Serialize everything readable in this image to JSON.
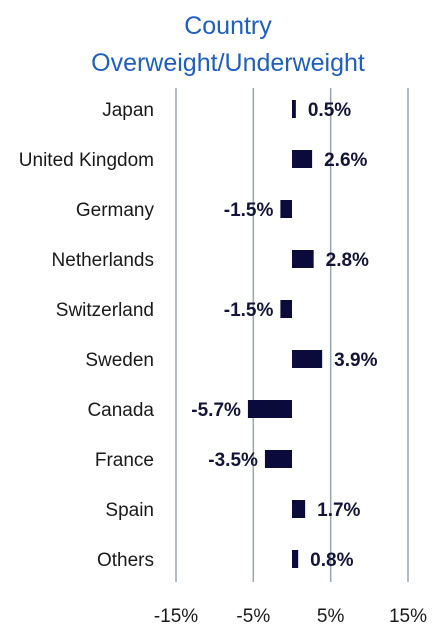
{
  "chart_data": {
    "type": "bar",
    "orientation": "horizontal",
    "title_lines": [
      "Country",
      "Overweight/Underweight"
    ],
    "categories": [
      "Japan",
      "United Kingdom",
      "Germany",
      "Netherlands",
      "Switzerland",
      "Sweden",
      "Canada",
      "France",
      "Spain",
      "Others"
    ],
    "values": [
      0.5,
      2.6,
      -1.5,
      2.8,
      -1.5,
      3.9,
      -5.7,
      -3.5,
      1.7,
      0.8
    ],
    "value_labels": [
      "0.5%",
      "2.6%",
      "-1.5%",
      "2.8%",
      "-1.5%",
      "3.9%",
      "-5.7%",
      "-3.5%",
      "1.7%",
      "0.8%"
    ],
    "x_ticks": [
      -15,
      -5,
      5,
      15
    ],
    "x_tick_labels": [
      "-15%",
      "-5%",
      "5%",
      "15%"
    ],
    "xlim": [
      -15,
      15
    ],
    "grid": "vertical",
    "legend": "none",
    "colors": {
      "bar": "#0b0b3b",
      "title": "#1f5fbf",
      "grid": "#9aa6ad",
      "text": "#1a1a1a"
    }
  }
}
